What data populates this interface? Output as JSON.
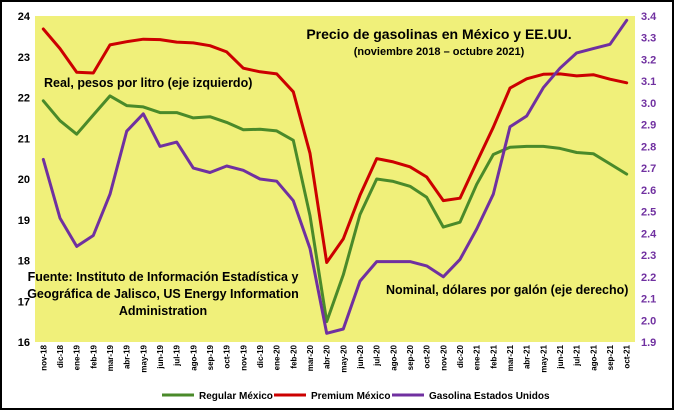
{
  "chart_data": {
    "type": "line",
    "title": "Precio de gasolinas en México y EE.UU.",
    "subtitle": "(noviembre 2018 – octubre 2021)",
    "annotations": {
      "left_axis_note": "Real, pesos por litro (eje izquierdo)",
      "right_axis_note": "Nominal, dólares por galón (eje derecho)",
      "source_lines": [
        "Fuente: Instituto de Información Estadística y",
        "Geográfica de Jalisco, US Energy Information",
        "Administration"
      ]
    },
    "x": [
      "nov-18",
      "dic-18",
      "ene-19",
      "feb-19",
      "mar-19",
      "abr-19",
      "may-19",
      "jun-19",
      "jul-19",
      "ago-19",
      "sep-19",
      "oct-19",
      "nov-19",
      "dic-19",
      "ene-20",
      "feb-20",
      "mar-20",
      "abr-20",
      "may-20",
      "jun-20",
      "jul-20",
      "ago-20",
      "sep-20",
      "oct-20",
      "nov-20",
      "dic-20",
      "ene-21",
      "feb-21",
      "mar-21",
      "abr-21",
      "may-21",
      "jun-21",
      "jul-21",
      "ago-21",
      "sep-21",
      "oct-21"
    ],
    "y_left": {
      "range": [
        16,
        24
      ],
      "ticks": [
        16,
        17,
        18,
        19,
        20,
        21,
        22,
        23,
        24
      ]
    },
    "y_right": {
      "range": [
        1.9,
        3.4
      ],
      "ticks": [
        "1.9",
        "2.0",
        "2.1",
        "2.2",
        "2.3",
        "2.4",
        "2.5",
        "2.6",
        "2.7",
        "2.8",
        "2.9",
        "3.0",
        "3.1",
        "3.2",
        "3.3",
        "3.4"
      ]
    },
    "series": [
      {
        "name": "Regular México",
        "axis": "left",
        "color": "#4a8a2a",
        "values": [
          21.92,
          21.43,
          21.1,
          21.57,
          22.04,
          21.8,
          21.77,
          21.63,
          21.63,
          21.5,
          21.53,
          21.39,
          21.21,
          21.22,
          21.18,
          20.95,
          19.1,
          16.5,
          17.65,
          19.13,
          20.0,
          19.94,
          19.82,
          19.55,
          18.82,
          18.94,
          19.87,
          20.6,
          20.78,
          20.8,
          20.8,
          20.75,
          20.65,
          20.62,
          20.37,
          20.12
        ]
      },
      {
        "name": "Premium México",
        "axis": "left",
        "color": "#cc0000",
        "values": [
          23.68,
          23.2,
          22.62,
          22.6,
          23.29,
          23.37,
          23.43,
          23.42,
          23.36,
          23.34,
          23.27,
          23.12,
          22.72,
          22.63,
          22.58,
          22.14,
          20.63,
          17.95,
          18.53,
          19.6,
          20.5,
          20.42,
          20.3,
          20.05,
          19.47,
          19.53,
          20.41,
          21.27,
          22.23,
          22.46,
          22.57,
          22.58,
          22.53,
          22.56,
          22.45,
          22.36
        ]
      },
      {
        "name": "Gasolina Estados Unidos",
        "axis": "right",
        "color": "#7030a0",
        "values": [
          2.74,
          2.47,
          2.34,
          2.39,
          2.58,
          2.87,
          2.95,
          2.8,
          2.82,
          2.7,
          2.68,
          2.71,
          2.69,
          2.65,
          2.64,
          2.55,
          2.33,
          1.94,
          1.96,
          2.18,
          2.27,
          2.27,
          2.27,
          2.25,
          2.2,
          2.28,
          2.42,
          2.58,
          2.89,
          2.94,
          3.07,
          3.16,
          3.23,
          3.25,
          3.27,
          3.38
        ]
      }
    ],
    "legend": {
      "placement": "bottom"
    },
    "plot_background": "#f0f07a",
    "grid": false
  }
}
